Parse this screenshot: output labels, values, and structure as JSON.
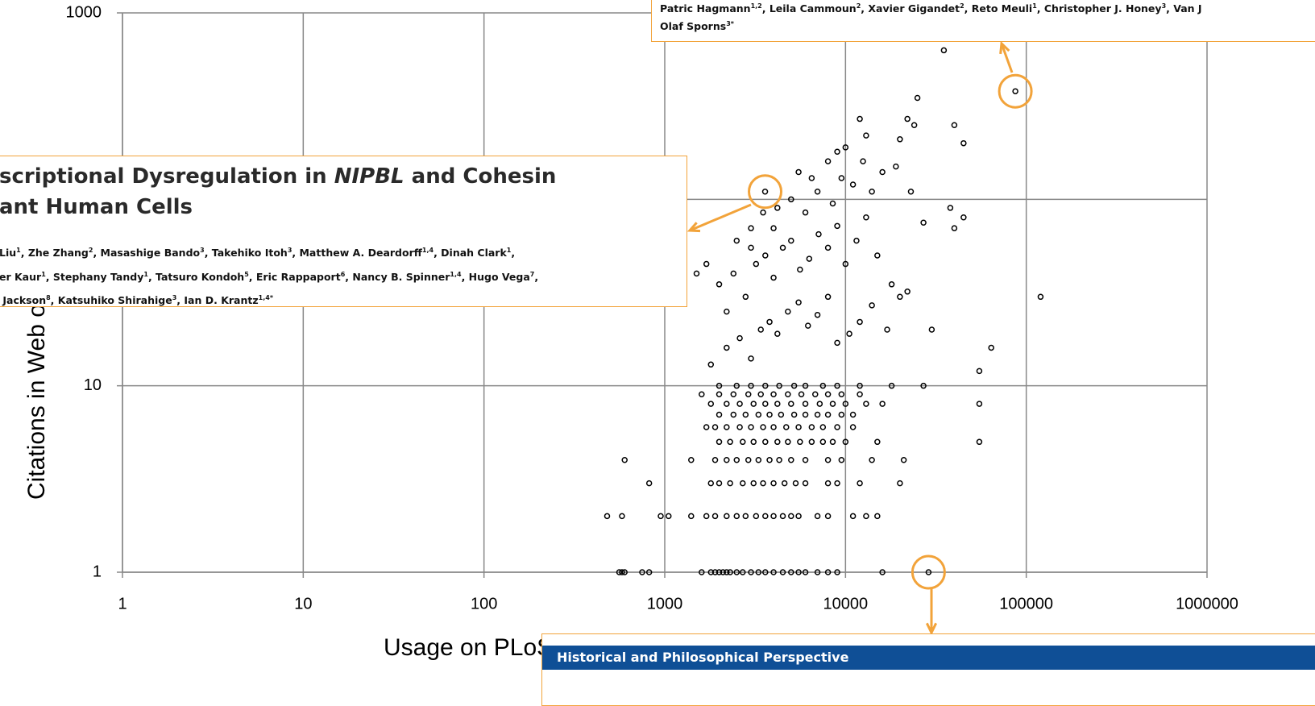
{
  "chart_data": {
    "type": "scatter",
    "y_label": "Citations in Web of Science",
    "x_label": "Usage on PLoS",
    "xlim": [
      1,
      1000000
    ],
    "xticks": [
      1,
      10,
      100,
      1000,
      10000,
      100000,
      1000000
    ],
    "ylim": [
      1,
      1000
    ],
    "yticks": [
      1,
      10,
      100,
      1000
    ],
    "x_log": true,
    "y_log": true,
    "grid": true,
    "series": [
      {
        "color": "#000000",
        "x": [
          560,
          580,
          600,
          750,
          820,
          1600,
          1800,
          1900,
          2000,
          2100,
          2200,
          2300,
          2500,
          2700,
          3000,
          3300,
          3600,
          4000,
          4500,
          5000,
          5500,
          6000,
          7000,
          8000,
          9000,
          16000,
          480,
          580,
          950,
          1050,
          1400,
          1700,
          1900,
          2200,
          2500,
          2800,
          3200,
          3600,
          4000,
          4500,
          5000,
          5500,
          7000,
          8000,
          11000,
          13000,
          15000,
          820,
          1800,
          2000,
          2300,
          2700,
          3100,
          3500,
          4000,
          4600,
          5300,
          6000,
          8000,
          9000,
          12000,
          20000,
          600,
          1400,
          1900,
          2200,
          2500,
          2900,
          3300,
          3800,
          4300,
          5000,
          6000,
          8000,
          9500,
          14000,
          21000,
          2000,
          2300,
          2700,
          3100,
          3600,
          4200,
          4800,
          5600,
          6500,
          7500,
          8500,
          10000,
          15000,
          55000,
          1700,
          1900,
          2200,
          2600,
          3000,
          3500,
          4000,
          4700,
          5500,
          6500,
          7500,
          9000,
          11000,
          2000,
          2400,
          2800,
          3300,
          3800,
          4400,
          5200,
          6000,
          7000,
          8000,
          9500,
          11000,
          1800,
          2200,
          2600,
          3100,
          3600,
          4200,
          5000,
          6000,
          7200,
          8500,
          10000,
          13000,
          16000,
          55000,
          1600,
          2000,
          2400,
          2900,
          3400,
          4000,
          4800,
          5700,
          6800,
          8000,
          9500,
          12000,
          2000,
          2500,
          3000,
          3600,
          4300,
          5200,
          6000,
          7500,
          9000,
          12000,
          18000,
          27000
        ],
        "values": [
          1,
          1,
          1,
          1,
          1,
          1,
          1,
          1,
          1,
          1,
          1,
          1,
          1,
          1,
          1,
          1,
          1,
          1,
          1,
          1,
          1,
          1,
          1,
          1,
          1,
          1,
          2,
          2,
          2,
          2,
          2,
          2,
          2,
          2,
          2,
          2,
          2,
          2,
          2,
          2,
          2,
          2,
          2,
          2,
          2,
          2,
          2,
          3,
          3,
          3,
          3,
          3,
          3,
          3,
          3,
          3,
          3,
          3,
          3,
          3,
          3,
          3,
          4,
          4,
          4,
          4,
          4,
          4,
          4,
          4,
          4,
          4,
          4,
          4,
          4,
          4,
          4,
          5,
          5,
          5,
          5,
          5,
          5,
          5,
          5,
          5,
          5,
          5,
          5,
          5,
          5,
          6,
          6,
          6,
          6,
          6,
          6,
          6,
          6,
          6,
          6,
          6,
          6,
          6,
          7,
          7,
          7,
          7,
          7,
          7,
          7,
          7,
          7,
          7,
          7,
          7,
          8,
          8,
          8,
          8,
          8,
          8,
          8,
          8,
          8,
          8,
          8,
          8,
          8,
          8,
          9,
          9,
          9,
          9,
          9,
          9,
          9,
          9,
          9,
          9,
          9,
          9,
          10,
          10,
          10,
          10,
          10,
          10,
          10,
          10,
          10,
          10,
          10,
          10
        ]
      },
      {
        "color": "#000000",
        "x": [
          1800,
          2200,
          2600,
          3000,
          3400,
          3800,
          4200,
          4800,
          5500,
          6200,
          7000,
          8000,
          9000,
          10500,
          12000,
          14000,
          17000,
          20000,
          2000,
          2400,
          2800,
          3200,
          3600,
          4000,
          4500,
          5000,
          5600,
          6300,
          7100,
          8000,
          9000,
          10000,
          11500,
          13000,
          15000,
          18000,
          22000,
          1500,
          1700,
          2500,
          3000,
          3500,
          4200,
          5000,
          6000,
          7000,
          8500,
          9500,
          11000,
          12500,
          14000,
          16000,
          19000,
          23000,
          27000,
          30000,
          40000,
          45000,
          55000,
          64000,
          120000,
          5500,
          8000,
          10000,
          12000,
          13000,
          20000,
          22000,
          24000,
          25000,
          35000,
          40000,
          9000,
          6500,
          4000,
          3000,
          2200,
          45000,
          38000
        ],
        "values": [
          13,
          16,
          18,
          14,
          20,
          22,
          19,
          25,
          28,
          21,
          24,
          30,
          17,
          19,
          22,
          27,
          20,
          30,
          35,
          40,
          30,
          45,
          50,
          38,
          55,
          60,
          42,
          48,
          65,
          55,
          72,
          45,
          60,
          80,
          50,
          35,
          32,
          40,
          45,
          60,
          70,
          85,
          90,
          100,
          85,
          110,
          95,
          130,
          120,
          160,
          110,
          140,
          150,
          110,
          75,
          20,
          70,
          200,
          12,
          16,
          30,
          140,
          160,
          190,
          270,
          220,
          210,
          270,
          250,
          350,
          630,
          250,
          180,
          130,
          70,
          55,
          25,
          80,
          90
        ]
      },
      {
        "color": "#f2a33a",
        "highlight": true,
        "x": [
          3590,
          87000,
          28800
        ],
        "values": [
          110,
          380,
          1
        ]
      }
    ]
  },
  "callouts": {
    "top": {
      "authors": [
        [
          "Patric Hagmann",
          "1,2",
          ", Leila Cammoun",
          "2",
          ", Xavier Gigandet",
          "2",
          ", Reto Meuli",
          "1",
          ", Christopher J. Honey",
          "3",
          ", Van J"
        ],
        [
          "Olaf Sporns",
          "3*"
        ]
      ]
    },
    "left": {
      "title_parts": [
        "scriptional Dysregulation in ",
        "NIPBL",
        " and Cohesin"
      ],
      "title_line2": "ant Human Cells",
      "authors": [
        [
          "Liu",
          "1",
          ", Zhe Zhang",
          "2",
          ", Masashige Bando",
          "3",
          ", Takehiko Itoh",
          "3",
          ", Matthew A. Deardorff",
          "1,4",
          ", Dinah Clark",
          "1",
          ","
        ],
        [
          "er Kaur",
          "1",
          ", Stephany Tandy",
          "1",
          ", Tatsuro Kondoh",
          "5",
          ", Eric Rappaport",
          "6",
          ", Nancy B. Spinner",
          "1,4",
          ", Hugo Vega",
          "7",
          ","
        ],
        [
          " Jackson",
          "8",
          ", Katsuhiko Shirahige",
          "3",
          ", Ian D. Krantz",
          "1,4*"
        ]
      ]
    },
    "bottom": {
      "heading": "Historical and Philosophical Perspective"
    }
  }
}
